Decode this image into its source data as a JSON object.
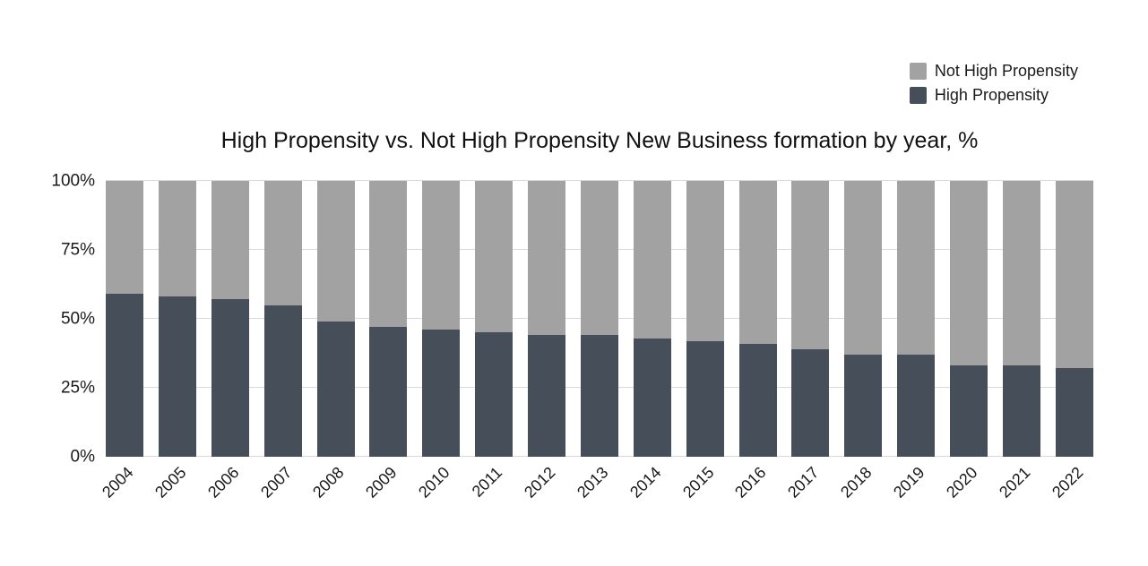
{
  "chart_data": {
    "type": "bar",
    "stacked": true,
    "percent_stacked": true,
    "title": "High Propensity vs. Not High Propensity New Business formation by year, %",
    "categories": [
      "2004",
      "2005",
      "2006",
      "2007",
      "2008",
      "2009",
      "2010",
      "2011",
      "2012",
      "2013",
      "2014",
      "2015",
      "2016",
      "2017",
      "2018",
      "2019",
      "2020",
      "2021",
      "2022"
    ],
    "series": [
      {
        "name": "High Propensity",
        "color": "#454e59",
        "values": [
          59,
          58,
          57,
          55,
          49,
          47,
          46,
          45,
          44,
          44,
          43,
          42,
          41,
          39,
          37,
          37,
          33,
          33,
          32
        ]
      },
      {
        "name": "Not High Propensity",
        "color": "#a2a2a2",
        "values": [
          41,
          42,
          43,
          45,
          51,
          53,
          54,
          55,
          56,
          56,
          57,
          58,
          59,
          61,
          63,
          63,
          67,
          67,
          68
        ]
      }
    ],
    "xlabel": "",
    "ylabel": "",
    "ylim": [
      0,
      100
    ],
    "y_ticks": [
      {
        "label": "0%",
        "value": 0
      },
      {
        "label": "25%",
        "value": 25
      },
      {
        "label": "50%",
        "value": 50
      },
      {
        "label": "75%",
        "value": 75
      },
      {
        "label": "100%",
        "value": 100
      }
    ],
    "grid": true,
    "legend_position": "top-right",
    "legend_order": [
      "Not High Propensity",
      "High Propensity"
    ],
    "background_color": "#ffffff",
    "gridline_color": "#d9d9d9"
  }
}
